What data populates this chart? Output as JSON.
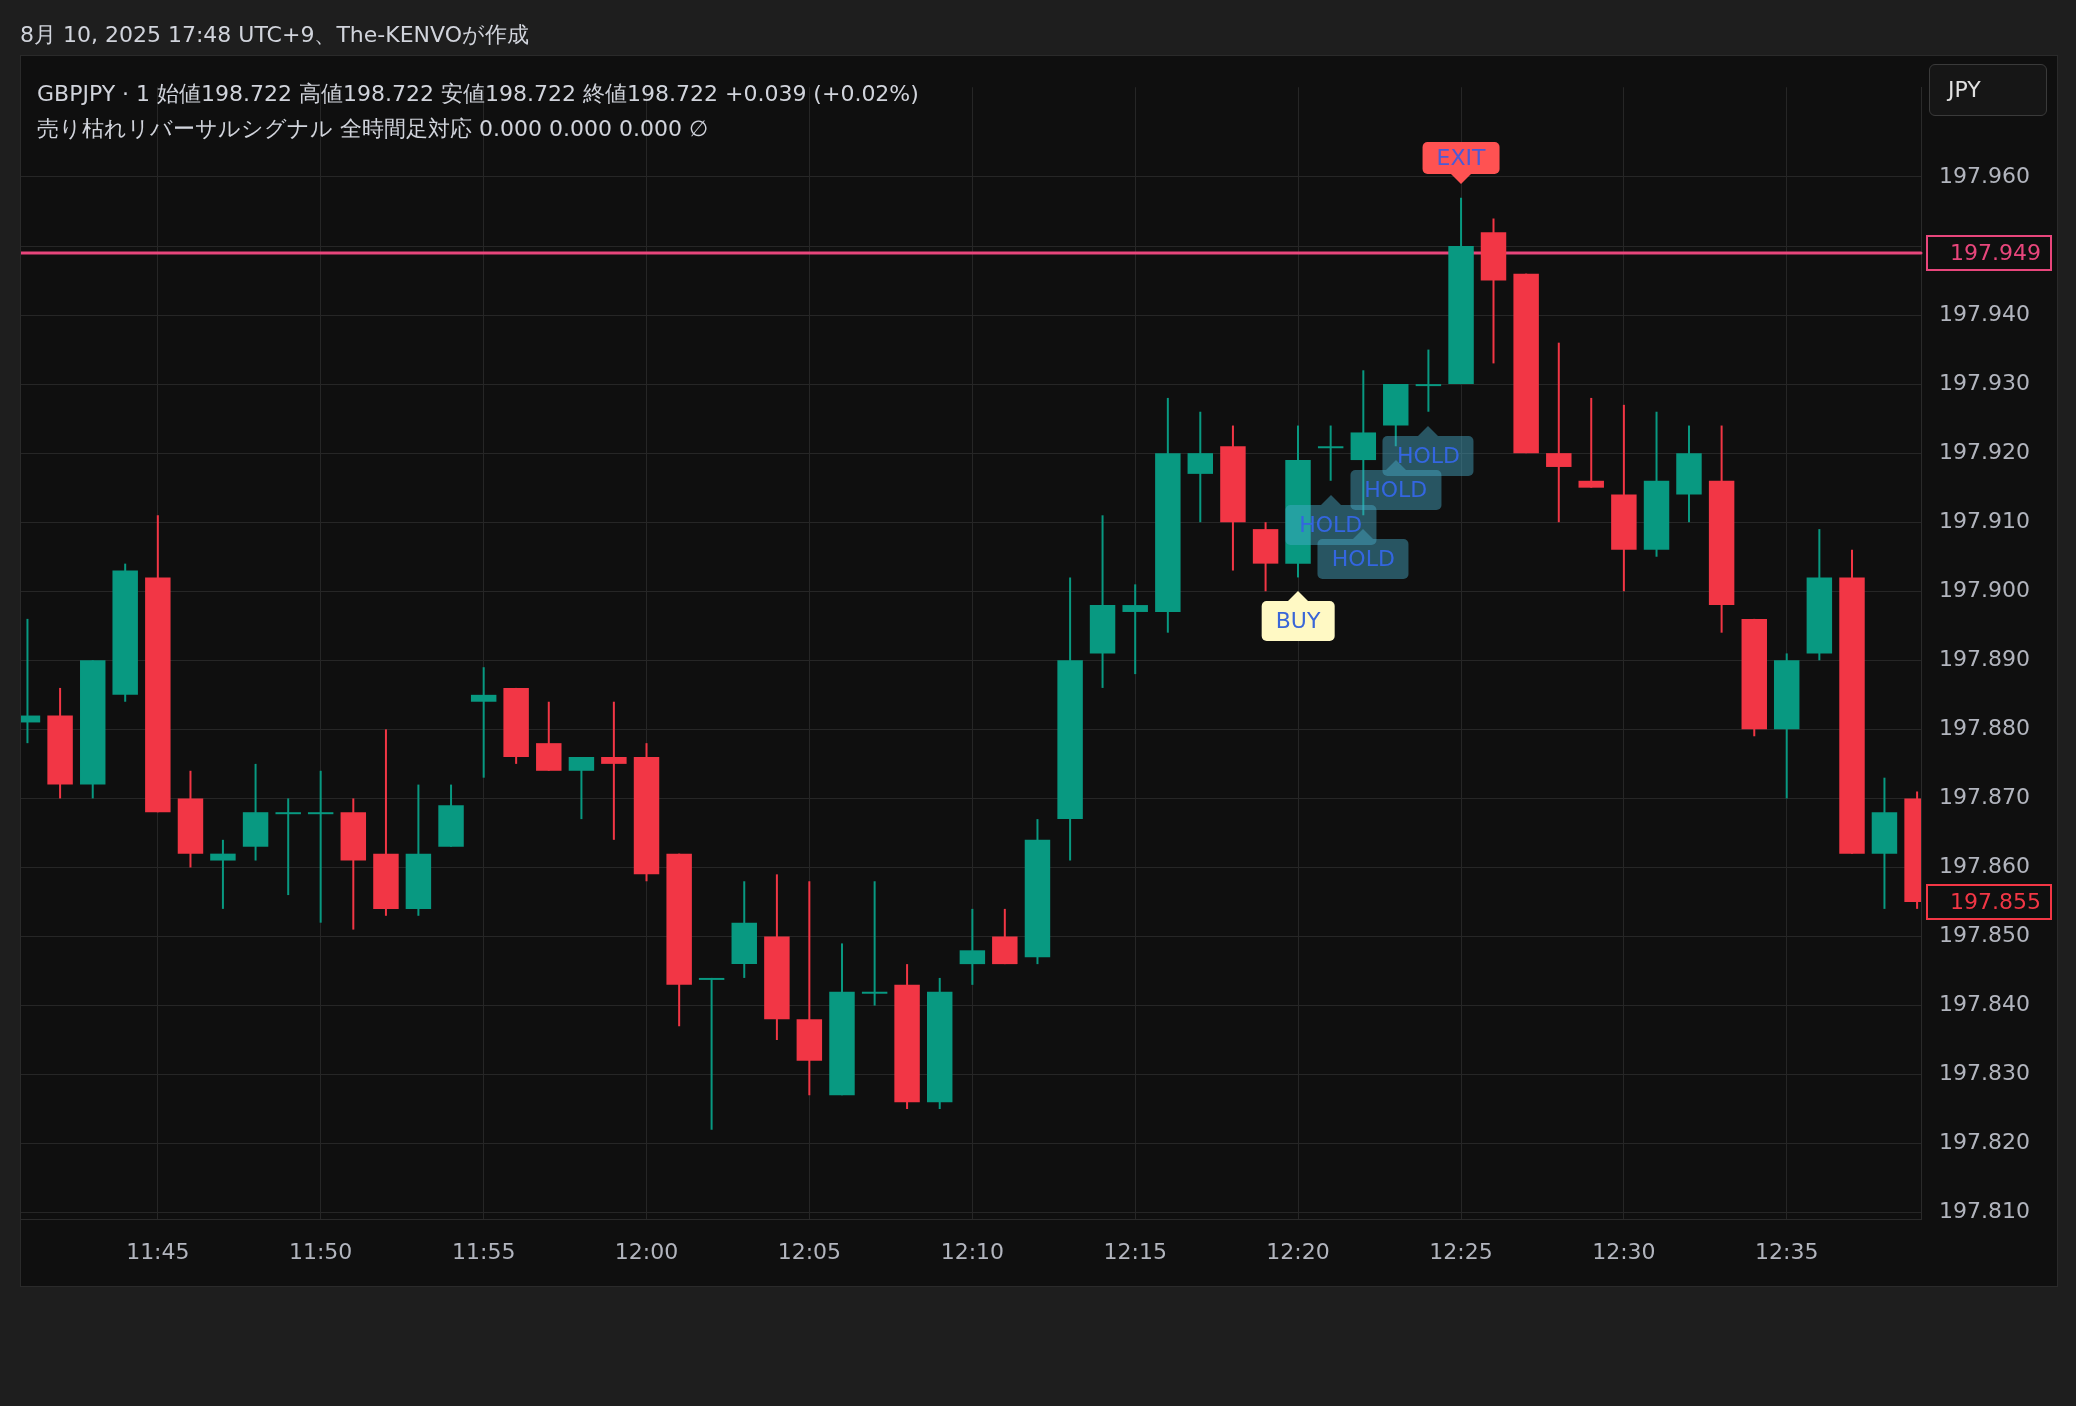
{
  "chart_data": {
    "type": "candlestick",
    "title": "GBPJPY · 1  始値198.722  高値198.722  安値198.722  終値198.722  +0.039 (+0.02%)",
    "subtitle": "売り枯れリバーサルシグナル 全時間足対応  0.000  0.000  0.000  ∅",
    "x": [
      11.6833,
      11.7,
      11.7167,
      11.7333,
      11.75,
      11.7667,
      11.7833,
      11.8,
      11.8167,
      11.8333,
      11.85,
      11.8667,
      11.8833,
      11.9,
      11.9167,
      11.9333,
      11.95,
      11.9667,
      11.9833,
      12,
      12.0167,
      12.0333,
      12.05,
      12.0667,
      12.0833,
      12.1,
      12.1167,
      12.1333,
      12.15,
      12.1667,
      12.1833,
      12.2,
      12.2167,
      12.2333,
      12.25,
      12.2667,
      12.2833,
      12.3,
      12.3167,
      12.3333,
      12.35,
      12.3667,
      12.3833,
      12.4,
      12.4167,
      12.4333,
      12.45,
      12.4667,
      12.4833,
      12.5,
      12.5167,
      12.5333,
      12.55,
      12.5667,
      12.5833,
      12.6,
      12.6167,
      12.6333,
      12.65
    ],
    "ohlc": [
      [
        197.881,
        197.896,
        197.878,
        197.882
      ],
      [
        197.882,
        197.886,
        197.87,
        197.872
      ],
      [
        197.872,
        197.89,
        197.87,
        197.89
      ],
      [
        197.885,
        197.904,
        197.884,
        197.903
      ],
      [
        197.902,
        197.911,
        197.868,
        197.868
      ],
      [
        197.87,
        197.874,
        197.86,
        197.862
      ],
      [
        197.861,
        197.864,
        197.854,
        197.862
      ],
      [
        197.863,
        197.875,
        197.861,
        197.868
      ],
      [
        197.868,
        197.87,
        197.856,
        197.868
      ],
      [
        197.868,
        197.874,
        197.852,
        197.868
      ],
      [
        197.868,
        197.87,
        197.851,
        197.861
      ],
      [
        197.862,
        197.88,
        197.853,
        197.854
      ],
      [
        197.854,
        197.872,
        197.853,
        197.862
      ],
      [
        197.863,
        197.872,
        197.863,
        197.869
      ],
      [
        197.884,
        197.889,
        197.873,
        197.885
      ],
      [
        197.886,
        197.886,
        197.875,
        197.876
      ],
      [
        197.878,
        197.884,
        197.874,
        197.874
      ],
      [
        197.874,
        197.876,
        197.867,
        197.876
      ],
      [
        197.876,
        197.884,
        197.864,
        197.875
      ],
      [
        197.876,
        197.878,
        197.858,
        197.859
      ],
      [
        197.862,
        197.862,
        197.837,
        197.843
      ],
      [
        197.844,
        197.844,
        197.822,
        197.844
      ],
      [
        197.846,
        197.858,
        197.844,
        197.852
      ],
      [
        197.85,
        197.859,
        197.835,
        197.838
      ],
      [
        197.838,
        197.858,
        197.827,
        197.832
      ],
      [
        197.827,
        197.849,
        197.827,
        197.842
      ],
      [
        197.842,
        197.858,
        197.84,
        197.842
      ],
      [
        197.843,
        197.846,
        197.825,
        197.826
      ],
      [
        197.826,
        197.844,
        197.825,
        197.842
      ],
      [
        197.846,
        197.854,
        197.843,
        197.848
      ],
      [
        197.85,
        197.854,
        197.846,
        197.846
      ],
      [
        197.847,
        197.867,
        197.846,
        197.864
      ],
      [
        197.867,
        197.902,
        197.861,
        197.89
      ],
      [
        197.891,
        197.911,
        197.886,
        197.898
      ],
      [
        197.897,
        197.901,
        197.888,
        197.898
      ],
      [
        197.897,
        197.928,
        197.894,
        197.92
      ],
      [
        197.917,
        197.926,
        197.91,
        197.92
      ],
      [
        197.921,
        197.924,
        197.903,
        197.91
      ],
      [
        197.909,
        197.91,
        197.9,
        197.904
      ],
      [
        197.904,
        197.924,
        197.902,
        197.919
      ],
      [
        197.921,
        197.924,
        197.916,
        197.921
      ],
      [
        197.919,
        197.932,
        197.911,
        197.923
      ],
      [
        197.924,
        197.93,
        197.921,
        197.93
      ],
      [
        197.93,
        197.935,
        197.926,
        197.93
      ],
      [
        197.93,
        197.957,
        197.93,
        197.95
      ],
      [
        197.952,
        197.954,
        197.933,
        197.945
      ],
      [
        197.946,
        197.946,
        197.92,
        197.92
      ],
      [
        197.92,
        197.936,
        197.91,
        197.918
      ],
      [
        197.916,
        197.928,
        197.915,
        197.915
      ],
      [
        197.914,
        197.927,
        197.9,
        197.906
      ],
      [
        197.906,
        197.926,
        197.905,
        197.916
      ],
      [
        197.914,
        197.924,
        197.91,
        197.92
      ],
      [
        197.916,
        197.924,
        197.894,
        197.898
      ],
      [
        197.896,
        197.896,
        197.879,
        197.88
      ],
      [
        197.88,
        197.891,
        197.87,
        197.89
      ],
      [
        197.891,
        197.909,
        197.89,
        197.902
      ],
      [
        197.902,
        197.906,
        197.862,
        197.862
      ],
      [
        197.862,
        197.873,
        197.854,
        197.868
      ],
      [
        197.87,
        197.871,
        197.854,
        197.855
      ]
    ],
    "colors": [
      "#089981",
      "#f23645",
      "#089981",
      "#089981",
      "#f23645",
      "#f23645",
      "#089981",
      "#089981",
      "#089981",
      "#089981",
      "#f23645",
      "#f23645",
      "#089981",
      "#089981",
      "#089981",
      "#f23645",
      "#f23645",
      "#089981",
      "#f23645",
      "#f23645",
      "#f23645",
      "#089981",
      "#089981",
      "#f23645",
      "#f23645",
      "#089981",
      "#089981",
      "#f23645",
      "#089981",
      "#089981",
      "#f23645",
      "#089981",
      "#089981",
      "#089981",
      "#089981",
      "#089981",
      "#089981",
      "#f23645",
      "#f23645",
      "#089981",
      "#089981",
      "#089981",
      "#089981",
      "#089981",
      "#089981",
      "#f23645",
      "#f23645",
      "#f23645",
      "#f23645",
      "#f23645",
      "#089981",
      "#089981",
      "#f23645",
      "#f23645",
      "#089981",
      "#089981",
      "#f23645",
      "#089981",
      "#f23645"
    ],
    "xlim": [
      11.68,
      12.652
    ],
    "xticks": [
      {
        "value": 11.75,
        "label": "11:45"
      },
      {
        "value": 11.8333,
        "label": "11:50"
      },
      {
        "value": 11.9167,
        "label": "11:55"
      },
      {
        "value": 12,
        "label": "12:00"
      },
      {
        "value": 12.0833,
        "label": "12:05"
      },
      {
        "value": 12.1667,
        "label": "12:10"
      },
      {
        "value": 12.25,
        "label": "12:15"
      },
      {
        "value": 12.3333,
        "label": "12:20"
      },
      {
        "value": 12.4167,
        "label": "12:25"
      },
      {
        "value": 12.5,
        "label": "12:30"
      },
      {
        "value": 12.5833,
        "label": "12:35"
      }
    ],
    "ylim": [
      197.809,
      197.973
    ],
    "yticks": [
      {
        "value": 197.81,
        "label": "197.810"
      },
      {
        "value": 197.82,
        "label": "197.820"
      },
      {
        "value": 197.83,
        "label": "197.830"
      },
      {
        "value": 197.84,
        "label": "197.840"
      },
      {
        "value": 197.85,
        "label": "197.850"
      },
      {
        "value": 197.86,
        "label": "197.860"
      },
      {
        "value": 197.87,
        "label": "197.870"
      },
      {
        "value": 197.88,
        "label": "197.880"
      },
      {
        "value": 197.89,
        "label": "197.890"
      },
      {
        "value": 197.9,
        "label": "197.900"
      },
      {
        "value": 197.91,
        "label": "197.910"
      },
      {
        "value": 197.92,
        "label": "197.920"
      },
      {
        "value": 197.93,
        "label": "197.930"
      },
      {
        "value": 197.94,
        "label": "197.940"
      },
      {
        "value": 197.95,
        "label": null
      },
      {
        "value": 197.96,
        "label": "197.960"
      }
    ],
    "ref_lines": [
      {
        "axis": "y",
        "value": 197.949,
        "label": "197.949",
        "color": "#e8467c"
      }
    ],
    "annotations": [
      "8月 10, 2025 17:48 UTC+9、The-KENVOが作成",
      "JPY",
      {
        "text": "BUY",
        "x": 12.3333,
        "y": 197.902
      },
      {
        "text": "HOLD",
        "x": 12.35,
        "y": 197.916
      },
      {
        "text": "HOLD",
        "x": 12.3667,
        "y": 197.911
      },
      {
        "text": "HOLD",
        "x": 12.3833,
        "y": 197.921
      },
      {
        "text": "HOLD",
        "x": 12.4,
        "y": 197.926
      },
      {
        "text": "EXIT",
        "x": 12.4167,
        "y": 197.957
      },
      {
        "text": "197.855",
        "x": 12.65,
        "y": 197.855
      }
    ],
    "grid": true,
    "legend": false
  }
}
